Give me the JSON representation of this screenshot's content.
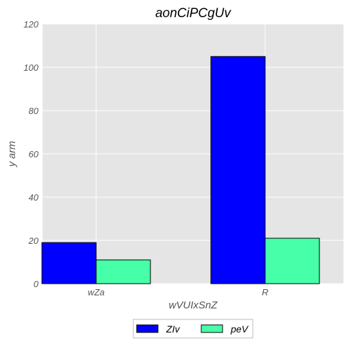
{
  "chart_data": {
    "type": "bar",
    "title": "aonCiPCgUv",
    "xlabel": "wVUIxSnZ",
    "ylabel": "y arm",
    "categories": [
      "wZa",
      "R"
    ],
    "series": [
      {
        "name": "ZIv",
        "values": [
          19,
          105
        ],
        "color": "#0000ff"
      },
      {
        "name": "peV",
        "values": [
          11,
          21
        ],
        "color": "#46ffa8"
      }
    ],
    "ylim": [
      0,
      120
    ],
    "yticks": [
      0,
      20,
      40,
      60,
      80,
      100,
      120
    ],
    "grid": true,
    "legend_position": "bottom-center",
    "background_color": "#e5e5e5"
  }
}
